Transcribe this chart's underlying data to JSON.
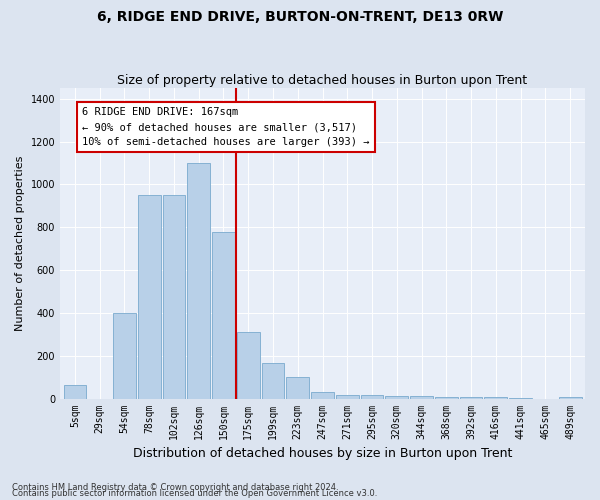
{
  "title": "6, RIDGE END DRIVE, BURTON-ON-TRENT, DE13 0RW",
  "subtitle": "Size of property relative to detached houses in Burton upon Trent",
  "xlabel": "Distribution of detached houses by size in Burton upon Trent",
  "ylabel": "Number of detached properties",
  "footnote1": "Contains HM Land Registry data © Crown copyright and database right 2024.",
  "footnote2": "Contains public sector information licensed under the Open Government Licence v3.0.",
  "categories": [
    "5sqm",
    "29sqm",
    "54sqm",
    "78sqm",
    "102sqm",
    "126sqm",
    "150sqm",
    "175sqm",
    "199sqm",
    "223sqm",
    "247sqm",
    "271sqm",
    "295sqm",
    "320sqm",
    "344sqm",
    "368sqm",
    "392sqm",
    "416sqm",
    "441sqm",
    "465sqm",
    "489sqm"
  ],
  "bar_values": [
    65,
    0,
    400,
    950,
    950,
    1100,
    780,
    310,
    165,
    100,
    30,
    15,
    15,
    10,
    10,
    8,
    5,
    5,
    3,
    0,
    5
  ],
  "bar_color": "#b8d0e8",
  "bar_edgecolor": "#7aaace",
  "vline_x": 7,
  "vline_color": "#cc0000",
  "vline_label": "6 RIDGE END DRIVE: 167sqm",
  "annotation_line2": "← 90% of detached houses are smaller (3,517)",
  "annotation_line3": "10% of semi-detached houses are larger (393) →",
  "annotation_box_edgecolor": "#cc0000",
  "ylim": [
    0,
    1450
  ],
  "yticks": [
    0,
    200,
    400,
    600,
    800,
    1000,
    1200,
    1400
  ],
  "background_color": "#dce4f0",
  "plot_background": "#e8eef8",
  "grid_color": "#ffffff",
  "title_fontsize": 10,
  "subtitle_fontsize": 9,
  "xlabel_fontsize": 9,
  "ylabel_fontsize": 8,
  "tick_fontsize": 7,
  "annotation_fontsize": 7.5,
  "figwidth": 6.0,
  "figheight": 5.0,
  "dpi": 100
}
